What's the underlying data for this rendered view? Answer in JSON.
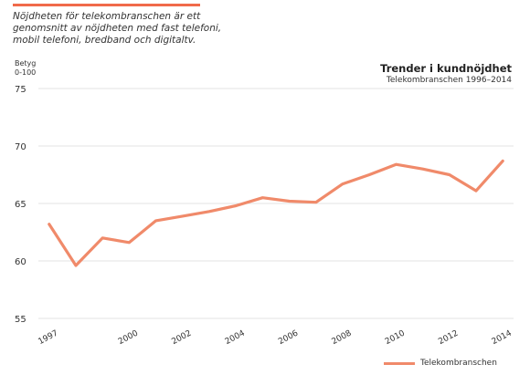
{
  "note": {
    "lines": [
      "Nöjdheten för telekombranschen är ett",
      "genomsnitt av nöjdheten med fast telefoni,",
      "mobil telefoni, bredband och digitaltv."
    ]
  },
  "colors": {
    "accent": "#f06a4a",
    "series": "#f08a6a",
    "grid": "#e3e3e3"
  },
  "chart_data": {
    "type": "line",
    "title": "Trender i kundnöjdhet",
    "subtitle": "Telekombranschen 1996–2014",
    "ylabel_line1": "Betyg",
    "ylabel_line2": "0-100",
    "xlabel": "",
    "ylim": [
      55,
      75
    ],
    "yticks": [
      "75",
      "70",
      "65",
      "60",
      "55"
    ],
    "xlim": [
      1997,
      2014
    ],
    "xticks": [
      {
        "x": 1997,
        "label": "1997"
      },
      {
        "x": 2000,
        "label": "2000"
      },
      {
        "x": 2002,
        "label": "2002"
      },
      {
        "x": 2004,
        "label": "2004"
      },
      {
        "x": 2006,
        "label": "2006"
      },
      {
        "x": 2008,
        "label": "2008"
      },
      {
        "x": 2010,
        "label": "2010"
      },
      {
        "x": 2012,
        "label": "2012"
      },
      {
        "x": 2014,
        "label": "2014"
      }
    ],
    "grid": "horizontal",
    "legend": "bottom-right",
    "series": [
      {
        "name": "Telekombranschen",
        "x": [
          1997,
          1998,
          1999,
          2000,
          2001,
          2002,
          2003,
          2004,
          2005,
          2006,
          2007,
          2008,
          2009,
          2010,
          2011,
          2012,
          2013,
          2014
        ],
        "values": [
          63.2,
          59.6,
          62.0,
          61.6,
          63.5,
          63.9,
          64.3,
          64.8,
          65.5,
          65.2,
          65.1,
          66.7,
          67.5,
          68.4,
          68.0,
          67.5,
          66.1,
          68.7
        ]
      }
    ]
  }
}
